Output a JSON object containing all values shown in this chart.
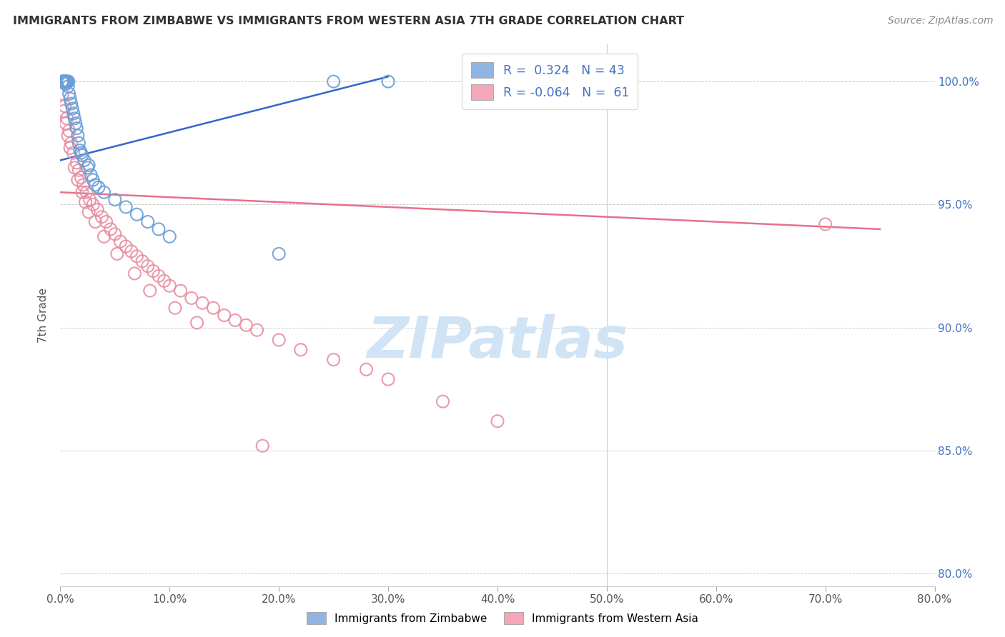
{
  "title": "IMMIGRANTS FROM ZIMBABWE VS IMMIGRANTS FROM WESTERN ASIA 7TH GRADE CORRELATION CHART",
  "source": "Source: ZipAtlas.com",
  "ylabel": "7th Grade",
  "xlim": [
    0.0,
    80.0
  ],
  "ylim": [
    79.5,
    101.5
  ],
  "x_ticks": [
    0.0,
    10.0,
    20.0,
    30.0,
    40.0,
    50.0,
    60.0,
    70.0,
    80.0
  ],
  "x_tick_labels": [
    "0.0%",
    "10.0%",
    "20.0%",
    "30.0%",
    "40.0%",
    "50.0%",
    "60.0%",
    "70.0%",
    "80.0%"
  ],
  "y_ticks": [
    80.0,
    85.0,
    90.0,
    95.0,
    100.0
  ],
  "y_tick_labels": [
    "80.0%",
    "85.0%",
    "90.0%",
    "95.0%",
    "100.0%"
  ],
  "blue_R": 0.324,
  "blue_N": 43,
  "pink_R": -0.064,
  "pink_N": 61,
  "blue_color": "#92B4E3",
  "pink_color": "#F4A7B9",
  "blue_edge_color": "#6A9FD8",
  "pink_edge_color": "#E88FA3",
  "blue_line_color": "#3366CC",
  "pink_line_color": "#E8708A",
  "watermark_text": "ZIPatlas",
  "watermark_color": "#D0E4F5",
  "legend1_label": "R =  0.324   N = 43",
  "legend2_label": "R = -0.064   N =  61",
  "bottom_legend1": "Immigrants from Zimbabwe",
  "bottom_legend2": "Immigrants from Western Asia",
  "blue_x": [
    0.2,
    0.3,
    0.4,
    0.5,
    0.6,
    0.7,
    0.8,
    0.9,
    1.0,
    1.1,
    1.2,
    1.3,
    1.5,
    1.6,
    1.7,
    1.8,
    2.0,
    2.2,
    2.5,
    2.8,
    3.0,
    3.5,
    4.0,
    5.0,
    6.0,
    7.0,
    8.0,
    9.0,
    10.0,
    0.15,
    0.25,
    0.35,
    0.45,
    0.55,
    0.65,
    0.75,
    1.4,
    1.9,
    2.6,
    3.2,
    20.0,
    25.0,
    30.0
  ],
  "blue_y": [
    100.0,
    100.0,
    100.0,
    99.9,
    100.0,
    99.8,
    99.5,
    99.3,
    99.1,
    98.9,
    98.7,
    98.5,
    98.1,
    97.8,
    97.5,
    97.2,
    97.0,
    96.8,
    96.5,
    96.2,
    96.0,
    95.7,
    95.5,
    95.2,
    94.9,
    94.6,
    94.3,
    94.0,
    93.7,
    100.0,
    100.0,
    100.0,
    100.0,
    100.0,
    100.0,
    100.0,
    98.3,
    97.1,
    96.6,
    95.8,
    93.0,
    100.0,
    100.0
  ],
  "pink_x": [
    0.2,
    0.4,
    0.6,
    0.8,
    1.0,
    1.2,
    1.5,
    1.7,
    1.9,
    2.1,
    2.4,
    2.7,
    3.0,
    3.4,
    3.8,
    4.2,
    4.6,
    5.0,
    5.5,
    6.0,
    6.5,
    7.0,
    7.5,
    8.0,
    8.5,
    9.0,
    9.5,
    10.0,
    11.0,
    12.0,
    13.0,
    14.0,
    15.0,
    16.0,
    17.0,
    18.0,
    20.0,
    22.0,
    25.0,
    28.0,
    30.0,
    35.0,
    40.0,
    0.3,
    0.5,
    0.7,
    0.9,
    1.3,
    1.6,
    2.0,
    2.3,
    2.6,
    3.2,
    4.0,
    5.2,
    6.8,
    8.2,
    10.5,
    12.5,
    18.5,
    70.0
  ],
  "pink_y": [
    99.5,
    99.0,
    98.5,
    98.0,
    97.5,
    97.1,
    96.7,
    96.4,
    96.1,
    95.8,
    95.5,
    95.2,
    95.0,
    94.8,
    94.5,
    94.3,
    94.0,
    93.8,
    93.5,
    93.3,
    93.1,
    92.9,
    92.7,
    92.5,
    92.3,
    92.1,
    91.9,
    91.7,
    91.5,
    91.2,
    91.0,
    90.8,
    90.5,
    90.3,
    90.1,
    89.9,
    89.5,
    89.1,
    88.7,
    88.3,
    87.9,
    87.0,
    86.2,
    98.8,
    98.3,
    97.8,
    97.3,
    96.5,
    96.0,
    95.5,
    95.1,
    94.7,
    94.3,
    93.7,
    93.0,
    92.2,
    91.5,
    90.8,
    90.2,
    85.2,
    94.2
  ],
  "blue_trendline_x": [
    0,
    30
  ],
  "blue_trendline_y": [
    96.8,
    100.2
  ],
  "pink_trendline_x": [
    0,
    75
  ],
  "pink_trendline_y": [
    95.5,
    94.0
  ]
}
